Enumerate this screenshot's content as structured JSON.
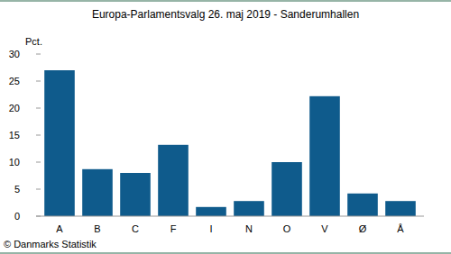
{
  "chart_data": {
    "type": "bar",
    "title": "Europa-Parlamentsvalg 26. maj 2019 - Sanderumhallen",
    "y_label": "Pct.",
    "source": "© Danmarks Statistik",
    "categories": [
      "A",
      "B",
      "C",
      "F",
      "I",
      "N",
      "O",
      "V",
      "Ø",
      "Å"
    ],
    "values": [
      27.0,
      8.7,
      8.0,
      13.2,
      1.7,
      2.8,
      10.0,
      22.2,
      4.2,
      2.8
    ],
    "color": "#0f5b8c",
    "ylim": [
      0,
      30
    ],
    "yticks": [
      0,
      5,
      10,
      15,
      20,
      25,
      30
    ],
    "grid": false
  }
}
